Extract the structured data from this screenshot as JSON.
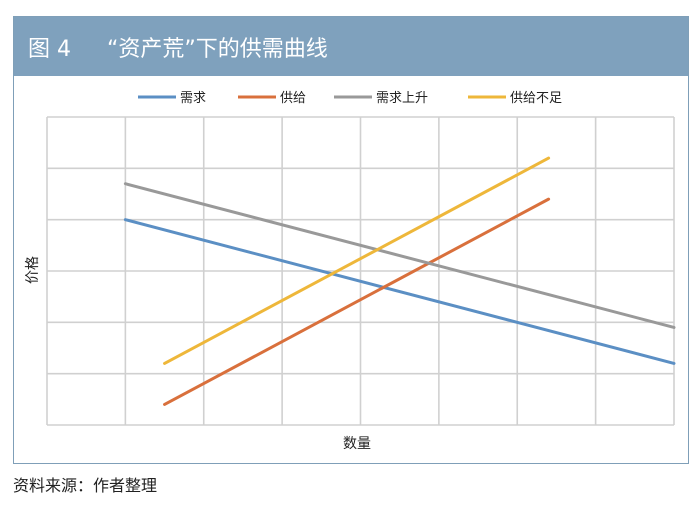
{
  "title": "图 4　  “资产荒”下的供需曲线",
  "source": "资料来源：作者整理",
  "chart_data": {
    "type": "line",
    "xlabel": "数量",
    "ylabel": "价格",
    "xlim": [
      0,
      8
    ],
    "ylim": [
      0,
      6
    ],
    "grid": true,
    "legend_position": "top",
    "series": [
      {
        "name": "需求",
        "color": "#5b8fc4",
        "x": [
          1,
          8
        ],
        "y": [
          4,
          1.2
        ]
      },
      {
        "name": "供给",
        "color": "#d9703c",
        "x": [
          1.5,
          6.4
        ],
        "y": [
          0.4,
          4.4
        ]
      },
      {
        "name": "需求上升",
        "color": "#999999",
        "x": [
          1,
          8
        ],
        "y": [
          4.7,
          1.9
        ]
      },
      {
        "name": "供给不足",
        "color": "#eeb73a",
        "x": [
          1.5,
          6.4
        ],
        "y": [
          1.2,
          5.2
        ]
      }
    ]
  }
}
